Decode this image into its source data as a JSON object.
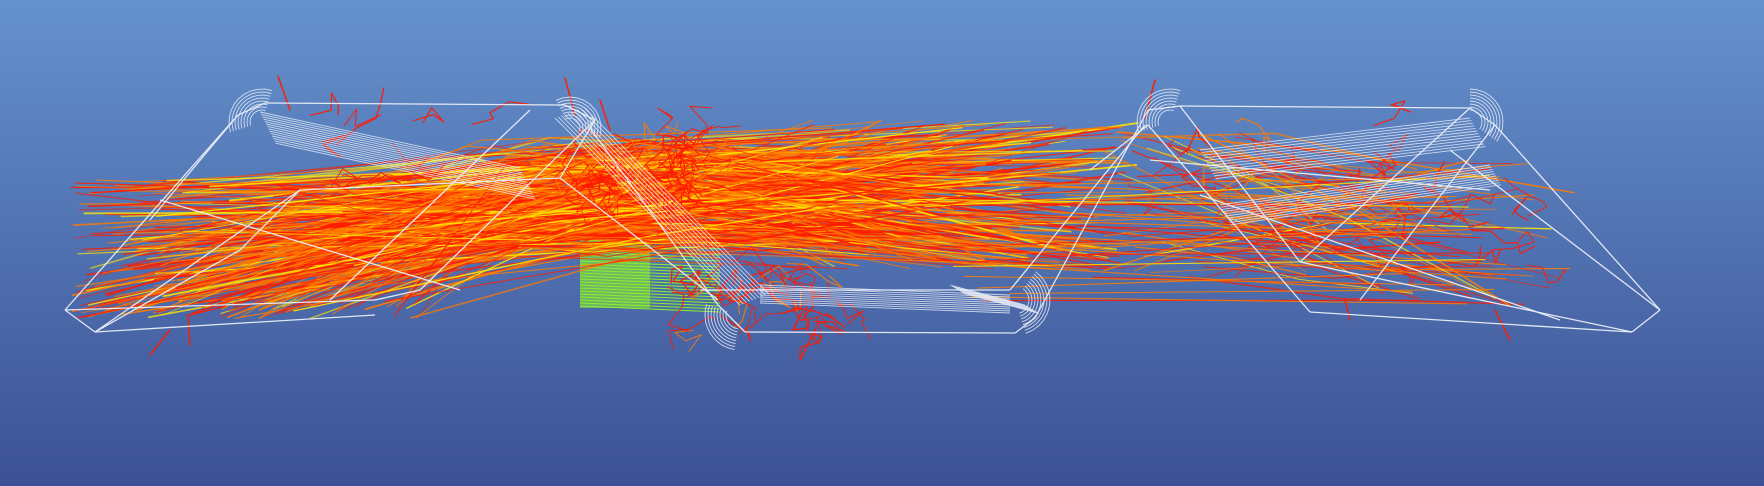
{
  "scene": {
    "view": "3d-wireframe-side",
    "background": {
      "top_color": "#6592cd",
      "bottom_color": "#3c5195"
    },
    "colors": {
      "wireframe": "#e9eef8",
      "ray_red": "#ff1a00",
      "ray_orange": "#ff7a00",
      "ray_yellow": "#ffe800",
      "detector_green": "#8cf22a"
    },
    "objects": [
      "left-crystal-wireframe",
      "center-crystal-wireframe",
      "right-crystal-wireframe",
      "optical-ray-paths",
      "detector-plane"
    ]
  }
}
